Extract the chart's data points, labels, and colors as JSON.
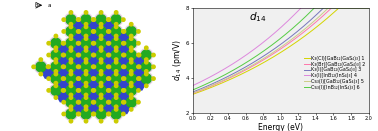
{
  "title": "d_{14}",
  "xlabel": "Energy (eV)",
  "ylabel": "d_{14} (pm/V)",
  "xlim": [
    0.0,
    2.0
  ],
  "ylim": [
    2.0,
    8.0
  ],
  "xticks": [
    0.0,
    0.2,
    0.4,
    0.6,
    0.8,
    1.0,
    1.2,
    1.4,
    1.6,
    1.8,
    2.0
  ],
  "yticks": [
    2,
    4,
    6,
    8
  ],
  "curves": [
    {
      "label": "K₃(Cl)[GaB₁₂(GaS₄)₃] 1",
      "color": "#d4d400",
      "lw": 0.7,
      "y0": 3.05,
      "rate": 0.58
    },
    {
      "label": "K₃(Br)[GaB₁₂(GaS₄)₃] 2",
      "color": "#ff77aa",
      "lw": 0.7,
      "y0": 3.1,
      "rate": 0.6
    },
    {
      "label": "K₃(I)[GaB₁₂(GaS₄)₃] 3",
      "color": "#7777bb",
      "lw": 0.7,
      "y0": 3.18,
      "rate": 0.62
    },
    {
      "label": "K₃(I)[InB₁₂(InS₄)₃] 4",
      "color": "#dd88dd",
      "lw": 0.7,
      "y0": 3.55,
      "rate": 0.66
    },
    {
      "label": "Cs₃(I)[GaB₁₂(GaS₄)₃] 5",
      "color": "#cccc88",
      "lw": 0.7,
      "y0": 3.12,
      "rate": 0.61
    },
    {
      "label": "Cs₃(I)[InB₁₂(InS₄)₃] 6",
      "color": "#55cc44",
      "lw": 0.7,
      "y0": 3.3,
      "rate": 0.64
    }
  ],
  "background_color": "#f0f0f0",
  "legend_fontsize": 3.5,
  "axis_fontsize": 5.5,
  "title_fontsize": 7.5,
  "left_bg": "#ffffff",
  "green_color": "#22aa22",
  "blue_color": "#3344cc",
  "yellow_color": "#cccc00",
  "white_ring": "#ffffff",
  "lavender_color": "#ccaacc"
}
